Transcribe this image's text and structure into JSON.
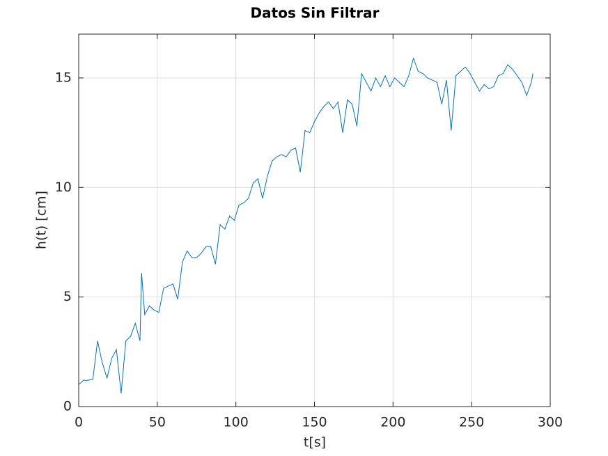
{
  "chart_data": {
    "type": "line",
    "title": "Datos Sin Filtrar",
    "x_label": "t[s]",
    "y_label": "h(t) [cm]",
    "x": [
      0,
      3,
      6,
      9,
      12,
      15,
      18,
      21,
      24,
      27,
      30,
      33,
      36,
      39,
      40,
      42,
      45,
      48,
      51,
      54,
      57,
      60,
      63,
      66,
      69,
      72,
      75,
      78,
      81,
      84,
      87,
      90,
      93,
      96,
      99,
      102,
      105,
      108,
      111,
      114,
      117,
      120,
      123,
      126,
      129,
      132,
      135,
      138,
      141,
      144,
      147,
      150,
      153,
      156,
      159,
      162,
      165,
      168,
      171,
      174,
      177,
      180,
      183,
      186,
      189,
      192,
      195,
      198,
      201,
      204,
      207,
      210,
      213,
      216,
      219,
      222,
      225,
      228,
      231,
      234,
      237,
      240,
      243,
      246,
      249,
      252,
      255,
      258,
      261,
      264,
      267,
      270,
      273,
      276,
      279,
      282,
      285,
      288,
      289
    ],
    "series": [
      {
        "color": "#0072bd",
        "values": [
          1.0,
          1.2,
          1.2,
          1.25,
          3.0,
          2.0,
          1.3,
          2.2,
          2.6,
          0.6,
          3.0,
          3.2,
          3.8,
          3.0,
          6.1,
          4.2,
          4.6,
          4.4,
          4.3,
          5.4,
          5.5,
          5.6,
          4.9,
          6.6,
          7.1,
          6.8,
          6.8,
          7.0,
          7.3,
          7.3,
          6.5,
          8.3,
          8.1,
          8.7,
          8.5,
          9.2,
          9.3,
          9.5,
          10.2,
          10.4,
          9.5,
          10.5,
          11.2,
          11.4,
          11.5,
          11.4,
          11.7,
          11.8,
          10.7,
          12.6,
          12.5,
          13.0,
          13.4,
          13.7,
          13.9,
          13.6,
          13.9,
          12.5,
          14.0,
          13.8,
          12.8,
          15.2,
          14.8,
          14.4,
          15.0,
          14.6,
          15.1,
          14.6,
          15.0,
          14.8,
          14.6,
          15.1,
          15.9,
          15.3,
          15.2,
          15.0,
          14.9,
          14.8,
          13.8,
          14.9,
          12.6,
          15.1,
          15.3,
          15.5,
          15.2,
          14.8,
          14.4,
          14.7,
          14.5,
          14.6,
          15.1,
          15.2,
          15.6,
          15.4,
          15.1,
          14.8,
          14.2,
          14.8,
          15.2
        ]
      }
    ],
    "xlim": [
      0,
      300
    ],
    "xticks": [
      0,
      50,
      100,
      150,
      200,
      250,
      300
    ],
    "ylim": [
      0,
      17
    ],
    "yticks": [
      0,
      5,
      10,
      15
    ],
    "grid": true
  }
}
